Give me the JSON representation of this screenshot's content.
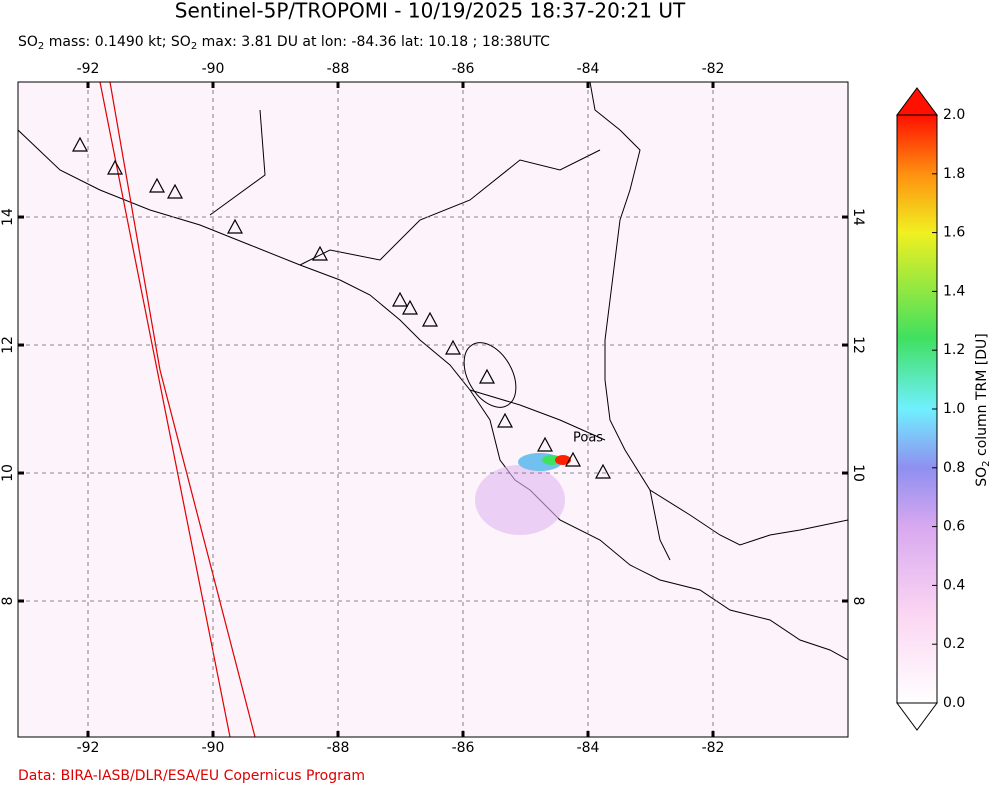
{
  "title": "Sentinel-5P/TROPOMI - 10/19/2025 18:37-20:21 UT",
  "subtitle": [
    "SO",
    "2",
    " mass: 0.1490 kt; SO",
    "2",
    " max: 3.81 DU at lon: -84.36 lat: 10.18 ; 18:38UTC"
  ],
  "map": {
    "xlim": [
      -93.12,
      -79.84
    ],
    "ylim": [
      5.875,
      16.11
    ],
    "xticks": [
      -92,
      -90,
      -88,
      -86,
      -84,
      -82
    ],
    "yticks": [
      8,
      10,
      12,
      14
    ],
    "grid": true,
    "volcano_label": "Poas"
  },
  "colorbar": {
    "clim": [
      0,
      2
    ],
    "ticks": [
      {
        "value": 0,
        "label": "0.0"
      },
      0.2,
      0.4,
      0.6,
      0.8,
      {
        "value": 1,
        "label": "1.0"
      },
      1.2,
      1.4,
      1.6,
      1.8,
      {
        "value": 2,
        "label": "2.0"
      }
    ],
    "label": [
      "SO",
      "2",
      " column TRM [DU]"
    ]
  },
  "credit": "Data: BIRA-IASB/DLR/ESA/EU Copernicus Program"
}
